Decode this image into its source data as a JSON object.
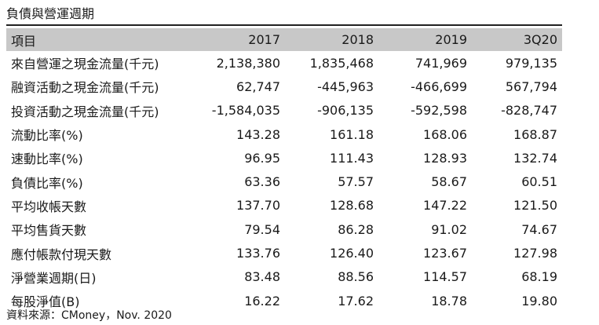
{
  "title": "負債與營運週期",
  "header": [
    "項目",
    "2017",
    "2018",
    "2019",
    "3Q20"
  ],
  "rows": [
    {
      "label": "來自營運之現金流量(千元)",
      "values": [
        "2,138,380",
        "1,835,468",
        "741,969",
        "979,135"
      ]
    },
    {
      "label": "融資活動之現金流量(千元)",
      "values": [
        "62,747",
        "-445,963",
        "-466,699",
        "567,794"
      ]
    },
    {
      "label": "投資活動之現金流量(千元)",
      "values": [
        "-1,584,035",
        "-906,135",
        "-592,598",
        "-828,747"
      ]
    },
    {
      "label": "流動比率(%)",
      "values": [
        "143.28",
        "161.18",
        "168.06",
        "168.87"
      ]
    },
    {
      "label": "速動比率(%)",
      "values": [
        "96.95",
        "111.43",
        "128.93",
        "132.74"
      ]
    },
    {
      "label": "負債比率(%)",
      "values": [
        "63.36",
        "57.57",
        "58.67",
        "60.51"
      ]
    },
    {
      "label": "平均收帳天數",
      "values": [
        "137.70",
        "128.68",
        "147.22",
        "121.50"
      ]
    },
    {
      "label": "平均售貨天數",
      "values": [
        "79.54",
        "86.28",
        "91.02",
        "74.67"
      ]
    },
    {
      "label": "應付帳款付現天數",
      "values": [
        "133.76",
        "126.40",
        "123.67",
        "127.98"
      ]
    },
    {
      "label": "淨營業週期(日)",
      "values": [
        "83.48",
        "88.56",
        "114.57",
        "68.19"
      ]
    },
    {
      "label": "每股淨值(B)",
      "values": [
        "16.22",
        "17.62",
        "18.78",
        "19.80"
      ]
    }
  ],
  "source": "資料來源：CMoney，Nov. 2020",
  "colors": {
    "header_bg": "#c8c8c8",
    "text": "#1a1a1a",
    "rule": "#222222"
  }
}
